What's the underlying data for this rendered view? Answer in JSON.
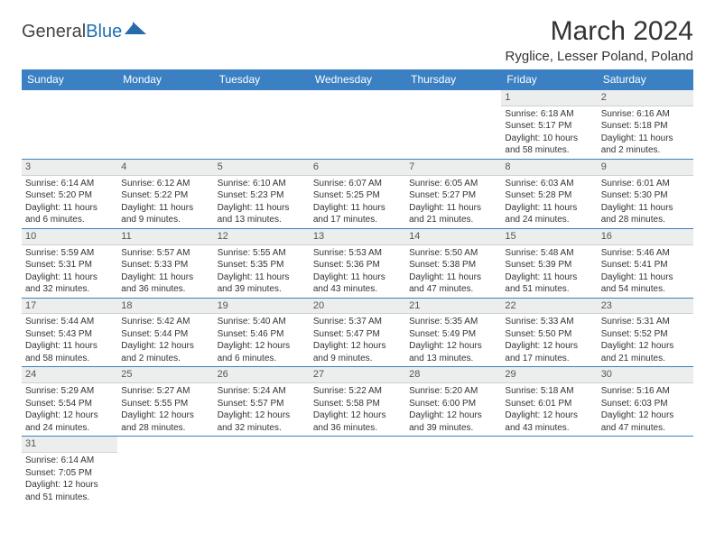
{
  "brand": {
    "part1": "General",
    "part2": "Blue"
  },
  "title": "March 2024",
  "location": "Ryglice, Lesser Poland, Poland",
  "colors": {
    "header_bg": "#3a80c3",
    "header_text": "#ffffff",
    "daynum_bg": "#eceded",
    "row_border": "#3a80c3",
    "brand_accent": "#1f6fb2",
    "text": "#333333",
    "background": "#ffffff"
  },
  "typography": {
    "title_fontsize": 30,
    "location_fontsize": 15,
    "header_fontsize": 12,
    "daynum_fontsize": 11,
    "cell_fontsize": 10,
    "font_family": "Arial"
  },
  "weekdays": [
    "Sunday",
    "Monday",
    "Tuesday",
    "Wednesday",
    "Thursday",
    "Friday",
    "Saturday"
  ],
  "weeks": [
    [
      {
        "n": "",
        "sr": "",
        "ss": "",
        "dl": ""
      },
      {
        "n": "",
        "sr": "",
        "ss": "",
        "dl": ""
      },
      {
        "n": "",
        "sr": "",
        "ss": "",
        "dl": ""
      },
      {
        "n": "",
        "sr": "",
        "ss": "",
        "dl": ""
      },
      {
        "n": "",
        "sr": "",
        "ss": "",
        "dl": ""
      },
      {
        "n": "1",
        "sr": "Sunrise: 6:18 AM",
        "ss": "Sunset: 5:17 PM",
        "dl": "Daylight: 10 hours and 58 minutes."
      },
      {
        "n": "2",
        "sr": "Sunrise: 6:16 AM",
        "ss": "Sunset: 5:18 PM",
        "dl": "Daylight: 11 hours and 2 minutes."
      }
    ],
    [
      {
        "n": "3",
        "sr": "Sunrise: 6:14 AM",
        "ss": "Sunset: 5:20 PM",
        "dl": "Daylight: 11 hours and 6 minutes."
      },
      {
        "n": "4",
        "sr": "Sunrise: 6:12 AM",
        "ss": "Sunset: 5:22 PM",
        "dl": "Daylight: 11 hours and 9 minutes."
      },
      {
        "n": "5",
        "sr": "Sunrise: 6:10 AM",
        "ss": "Sunset: 5:23 PM",
        "dl": "Daylight: 11 hours and 13 minutes."
      },
      {
        "n": "6",
        "sr": "Sunrise: 6:07 AM",
        "ss": "Sunset: 5:25 PM",
        "dl": "Daylight: 11 hours and 17 minutes."
      },
      {
        "n": "7",
        "sr": "Sunrise: 6:05 AM",
        "ss": "Sunset: 5:27 PM",
        "dl": "Daylight: 11 hours and 21 minutes."
      },
      {
        "n": "8",
        "sr": "Sunrise: 6:03 AM",
        "ss": "Sunset: 5:28 PM",
        "dl": "Daylight: 11 hours and 24 minutes."
      },
      {
        "n": "9",
        "sr": "Sunrise: 6:01 AM",
        "ss": "Sunset: 5:30 PM",
        "dl": "Daylight: 11 hours and 28 minutes."
      }
    ],
    [
      {
        "n": "10",
        "sr": "Sunrise: 5:59 AM",
        "ss": "Sunset: 5:31 PM",
        "dl": "Daylight: 11 hours and 32 minutes."
      },
      {
        "n": "11",
        "sr": "Sunrise: 5:57 AM",
        "ss": "Sunset: 5:33 PM",
        "dl": "Daylight: 11 hours and 36 minutes."
      },
      {
        "n": "12",
        "sr": "Sunrise: 5:55 AM",
        "ss": "Sunset: 5:35 PM",
        "dl": "Daylight: 11 hours and 39 minutes."
      },
      {
        "n": "13",
        "sr": "Sunrise: 5:53 AM",
        "ss": "Sunset: 5:36 PM",
        "dl": "Daylight: 11 hours and 43 minutes."
      },
      {
        "n": "14",
        "sr": "Sunrise: 5:50 AM",
        "ss": "Sunset: 5:38 PM",
        "dl": "Daylight: 11 hours and 47 minutes."
      },
      {
        "n": "15",
        "sr": "Sunrise: 5:48 AM",
        "ss": "Sunset: 5:39 PM",
        "dl": "Daylight: 11 hours and 51 minutes."
      },
      {
        "n": "16",
        "sr": "Sunrise: 5:46 AM",
        "ss": "Sunset: 5:41 PM",
        "dl": "Daylight: 11 hours and 54 minutes."
      }
    ],
    [
      {
        "n": "17",
        "sr": "Sunrise: 5:44 AM",
        "ss": "Sunset: 5:43 PM",
        "dl": "Daylight: 11 hours and 58 minutes."
      },
      {
        "n": "18",
        "sr": "Sunrise: 5:42 AM",
        "ss": "Sunset: 5:44 PM",
        "dl": "Daylight: 12 hours and 2 minutes."
      },
      {
        "n": "19",
        "sr": "Sunrise: 5:40 AM",
        "ss": "Sunset: 5:46 PM",
        "dl": "Daylight: 12 hours and 6 minutes."
      },
      {
        "n": "20",
        "sr": "Sunrise: 5:37 AM",
        "ss": "Sunset: 5:47 PM",
        "dl": "Daylight: 12 hours and 9 minutes."
      },
      {
        "n": "21",
        "sr": "Sunrise: 5:35 AM",
        "ss": "Sunset: 5:49 PM",
        "dl": "Daylight: 12 hours and 13 minutes."
      },
      {
        "n": "22",
        "sr": "Sunrise: 5:33 AM",
        "ss": "Sunset: 5:50 PM",
        "dl": "Daylight: 12 hours and 17 minutes."
      },
      {
        "n": "23",
        "sr": "Sunrise: 5:31 AM",
        "ss": "Sunset: 5:52 PM",
        "dl": "Daylight: 12 hours and 21 minutes."
      }
    ],
    [
      {
        "n": "24",
        "sr": "Sunrise: 5:29 AM",
        "ss": "Sunset: 5:54 PM",
        "dl": "Daylight: 12 hours and 24 minutes."
      },
      {
        "n": "25",
        "sr": "Sunrise: 5:27 AM",
        "ss": "Sunset: 5:55 PM",
        "dl": "Daylight: 12 hours and 28 minutes."
      },
      {
        "n": "26",
        "sr": "Sunrise: 5:24 AM",
        "ss": "Sunset: 5:57 PM",
        "dl": "Daylight: 12 hours and 32 minutes."
      },
      {
        "n": "27",
        "sr": "Sunrise: 5:22 AM",
        "ss": "Sunset: 5:58 PM",
        "dl": "Daylight: 12 hours and 36 minutes."
      },
      {
        "n": "28",
        "sr": "Sunrise: 5:20 AM",
        "ss": "Sunset: 6:00 PM",
        "dl": "Daylight: 12 hours and 39 minutes."
      },
      {
        "n": "29",
        "sr": "Sunrise: 5:18 AM",
        "ss": "Sunset: 6:01 PM",
        "dl": "Daylight: 12 hours and 43 minutes."
      },
      {
        "n": "30",
        "sr": "Sunrise: 5:16 AM",
        "ss": "Sunset: 6:03 PM",
        "dl": "Daylight: 12 hours and 47 minutes."
      }
    ],
    [
      {
        "n": "31",
        "sr": "Sunrise: 6:14 AM",
        "ss": "Sunset: 7:05 PM",
        "dl": "Daylight: 12 hours and 51 minutes."
      },
      {
        "n": "",
        "sr": "",
        "ss": "",
        "dl": ""
      },
      {
        "n": "",
        "sr": "",
        "ss": "",
        "dl": ""
      },
      {
        "n": "",
        "sr": "",
        "ss": "",
        "dl": ""
      },
      {
        "n": "",
        "sr": "",
        "ss": "",
        "dl": ""
      },
      {
        "n": "",
        "sr": "",
        "ss": "",
        "dl": ""
      },
      {
        "n": "",
        "sr": "",
        "ss": "",
        "dl": ""
      }
    ]
  ]
}
